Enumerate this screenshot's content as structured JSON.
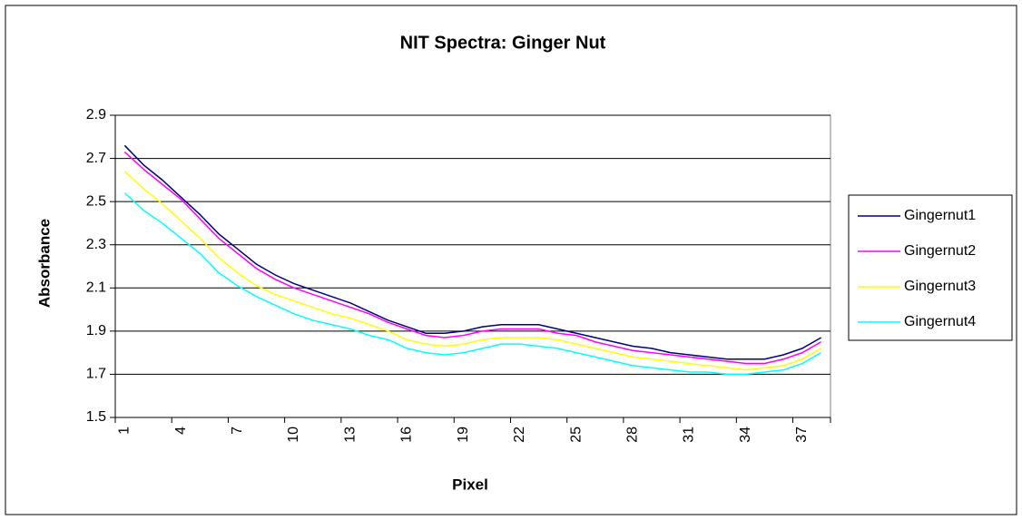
{
  "chart_data": {
    "type": "line",
    "title": "NIT Spectra: Ginger Nut",
    "x_label": "Pixel",
    "y_label": "Absorbance",
    "categories": [
      "1",
      null,
      null,
      "4",
      null,
      null,
      "7",
      null,
      null,
      "10",
      null,
      null,
      "13",
      null,
      null,
      "16",
      null,
      null,
      "19",
      null,
      null,
      "22",
      null,
      null,
      "25",
      null,
      null,
      "28",
      null,
      null,
      "31",
      null,
      null,
      "34",
      null,
      null,
      "37",
      null
    ],
    "ylim": [
      1.5,
      2.9
    ],
    "yticks": [
      1.5,
      1.7,
      1.9,
      2.1,
      2.3,
      2.5,
      2.7,
      2.9
    ],
    "grid": true,
    "legend": "right",
    "series": [
      {
        "name": "Gingernut1",
        "color": "#000080",
        "values": [
          2.76,
          2.67,
          2.6,
          2.52,
          2.44,
          2.35,
          2.28,
          2.21,
          2.16,
          2.12,
          2.09,
          2.06,
          2.03,
          1.99,
          1.95,
          1.92,
          1.89,
          1.89,
          1.9,
          1.92,
          1.93,
          1.93,
          1.93,
          1.91,
          1.89,
          1.87,
          1.85,
          1.83,
          1.82,
          1.8,
          1.79,
          1.78,
          1.77,
          1.77,
          1.77,
          1.79,
          1.82,
          1.87
        ]
      },
      {
        "name": "Gingernut2",
        "color": "#ff00ff",
        "values": [
          2.73,
          2.65,
          2.58,
          2.51,
          2.42,
          2.33,
          2.26,
          2.19,
          2.14,
          2.1,
          2.07,
          2.04,
          2.01,
          1.98,
          1.94,
          1.91,
          1.88,
          1.87,
          1.88,
          1.9,
          1.91,
          1.91,
          1.91,
          1.89,
          1.88,
          1.85,
          1.83,
          1.81,
          1.8,
          1.79,
          1.78,
          1.77,
          1.76,
          1.75,
          1.75,
          1.77,
          1.8,
          1.85
        ]
      },
      {
        "name": "Gingernut3",
        "color": "#ffff00",
        "values": [
          2.64,
          2.56,
          2.49,
          2.41,
          2.33,
          2.24,
          2.17,
          2.11,
          2.07,
          2.04,
          2.01,
          1.98,
          1.96,
          1.93,
          1.9,
          1.86,
          1.84,
          1.83,
          1.84,
          1.86,
          1.87,
          1.87,
          1.87,
          1.86,
          1.84,
          1.82,
          1.8,
          1.78,
          1.77,
          1.76,
          1.75,
          1.74,
          1.73,
          1.72,
          1.73,
          1.74,
          1.77,
          1.82
        ]
      },
      {
        "name": "Gingernut4",
        "color": "#00ffff",
        "values": [
          2.54,
          2.46,
          2.4,
          2.33,
          2.26,
          2.17,
          2.11,
          2.06,
          2.02,
          1.98,
          1.95,
          1.93,
          1.91,
          1.88,
          1.86,
          1.82,
          1.8,
          1.79,
          1.8,
          1.82,
          1.84,
          1.84,
          1.83,
          1.82,
          1.8,
          1.78,
          1.76,
          1.74,
          1.73,
          1.72,
          1.71,
          1.71,
          1.7,
          1.7,
          1.71,
          1.72,
          1.75,
          1.8
        ]
      }
    ]
  }
}
